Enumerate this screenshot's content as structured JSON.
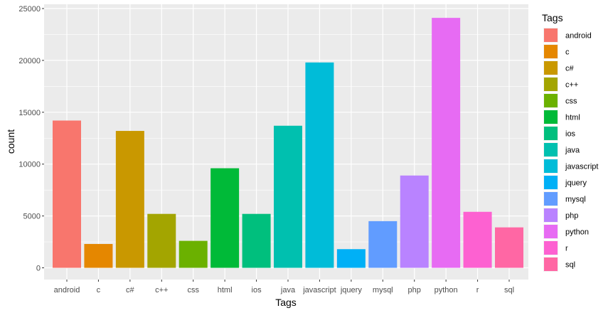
{
  "chart_data": {
    "type": "bar",
    "title": "",
    "xlabel": "Tags",
    "ylabel": "count",
    "categories": [
      "android",
      "c",
      "c#",
      "c++",
      "css",
      "html",
      "ios",
      "java",
      "javascript",
      "jquery",
      "mysql",
      "php",
      "python",
      "r",
      "sql"
    ],
    "values": [
      14200,
      2300,
      13200,
      5200,
      2600,
      9600,
      5200,
      13700,
      19800,
      1800,
      4500,
      8900,
      24100,
      5400,
      3900
    ],
    "colors": [
      "#F8766D",
      "#E58700",
      "#C99800",
      "#A3A500",
      "#6BB100",
      "#00BA38",
      "#00BF7D",
      "#00C0AF",
      "#00BCD8",
      "#00B0F6",
      "#619CFF",
      "#B983FF",
      "#E76BF3",
      "#FD61D1",
      "#FF67A4"
    ],
    "ylim": [
      0,
      25500
    ],
    "yticks": [
      0,
      5000,
      10000,
      15000,
      20000,
      25000
    ],
    "grid": true,
    "panel_background": "#EBEBEB",
    "legend": {
      "title": "Tags",
      "placement": "right",
      "entries": [
        "android",
        "c",
        "c#",
        "c++",
        "css",
        "html",
        "ios",
        "java",
        "javascript",
        "jquery",
        "mysql",
        "php",
        "python",
        "r",
        "sql"
      ]
    }
  }
}
